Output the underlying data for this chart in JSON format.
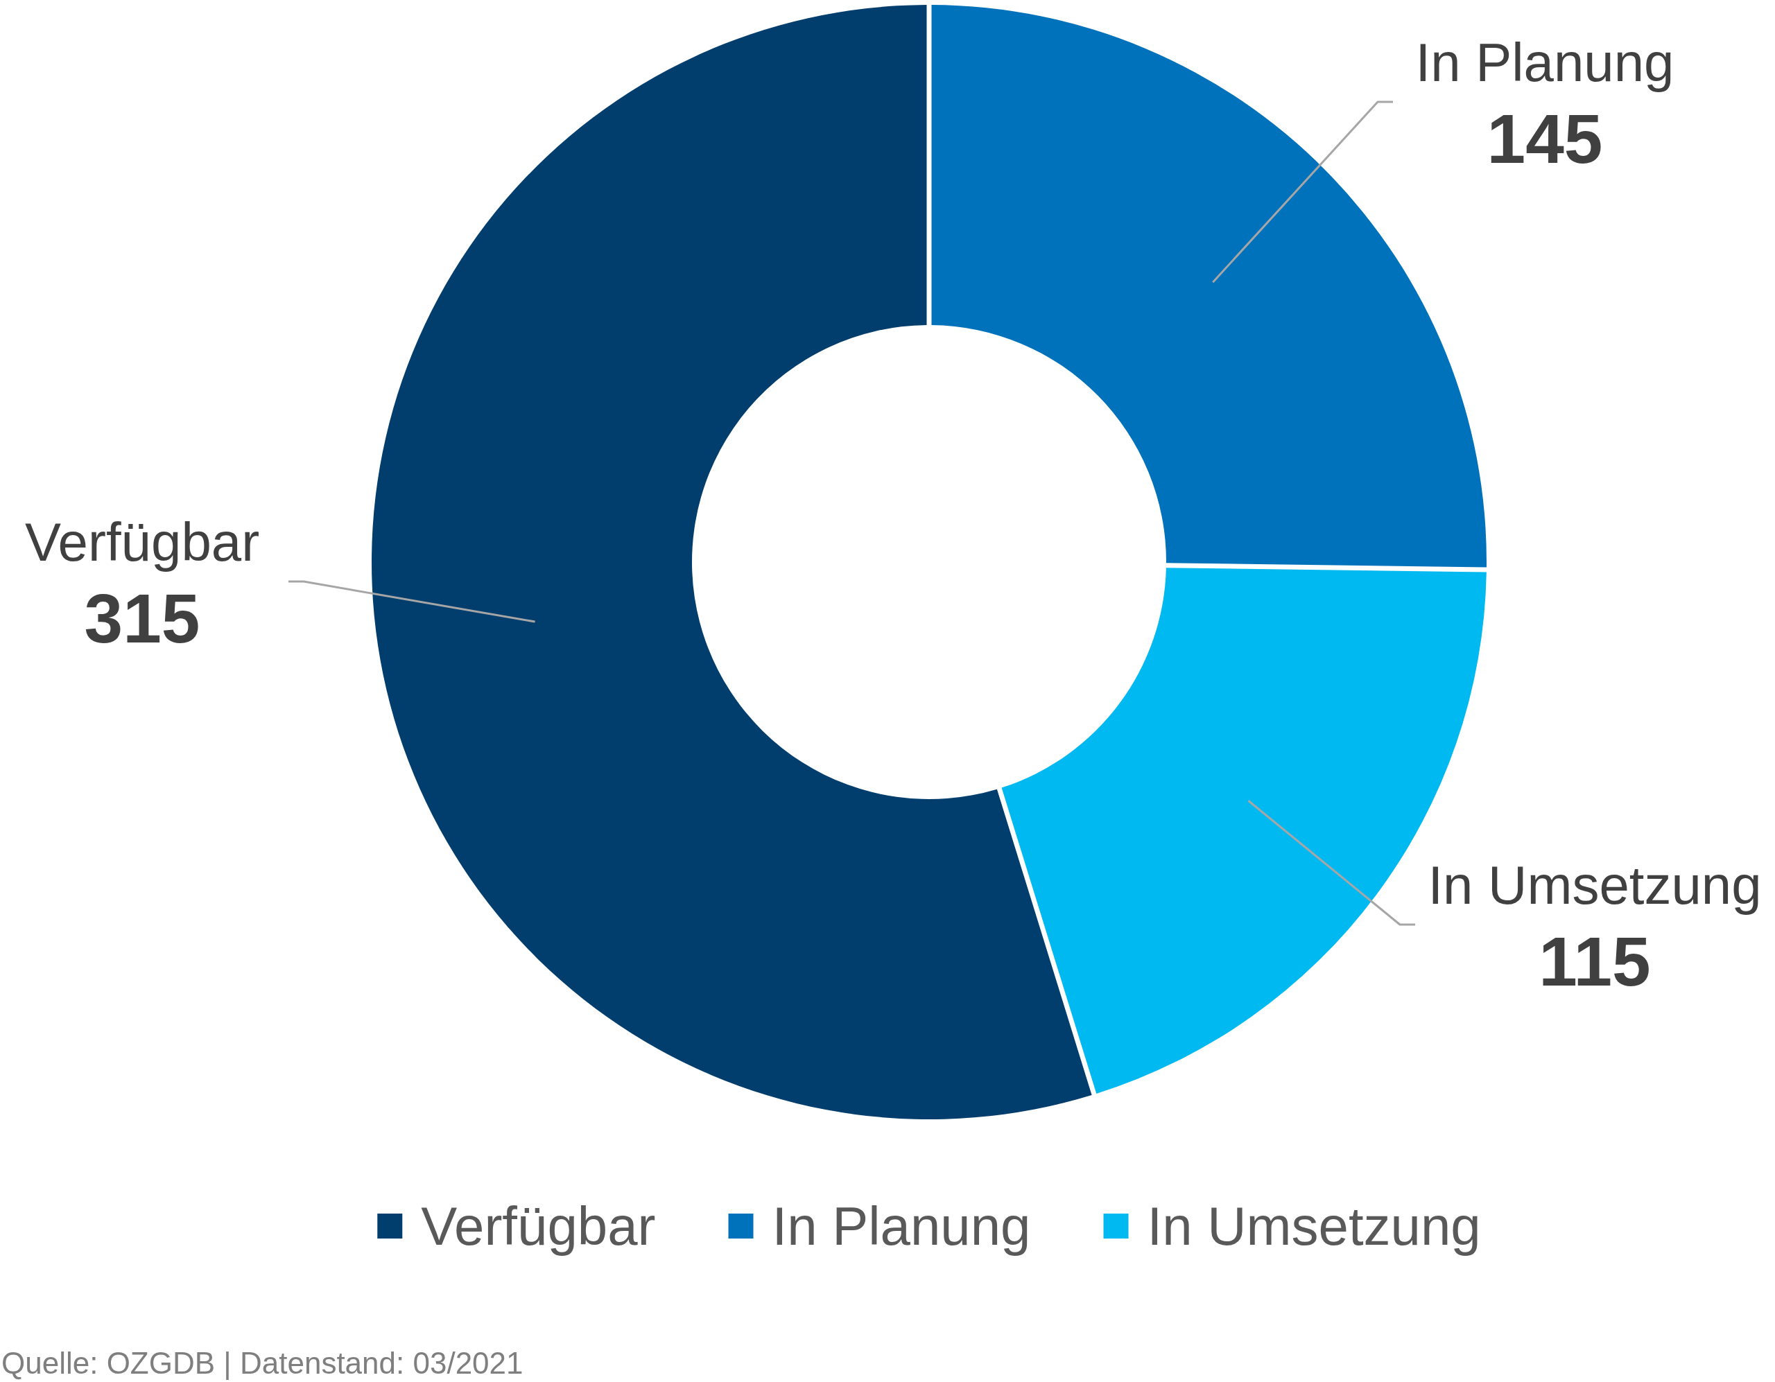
{
  "chart_data": {
    "type": "donut",
    "categories": [
      "Verfügbar",
      "In Planung",
      "In Umsetzung"
    ],
    "values": [
      315,
      145,
      115
    ],
    "colors": [
      "#023e6d",
      "#0072bc",
      "#00b9f1"
    ],
    "data_labels": true,
    "legend": "bottom",
    "annotations": [
      "Quelle: OZGDB | Datenstand: 03/2021"
    ]
  }
}
